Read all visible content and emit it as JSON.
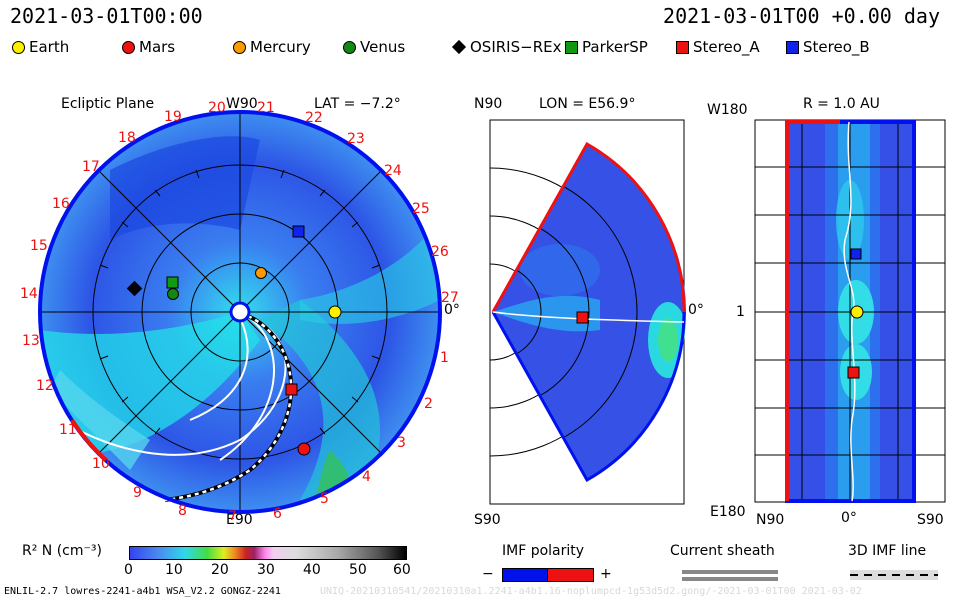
{
  "header": {
    "left_time": "2021-03-01T00:00",
    "right_time": "2021-03-01T00 +0.00 day"
  },
  "legend": [
    {
      "label": "Earth",
      "shape": "circle",
      "color": "#ffee00"
    },
    {
      "label": "Mars",
      "shape": "circle",
      "color": "#ee1111"
    },
    {
      "label": "Mercury",
      "shape": "circle",
      "color": "#ff9900"
    },
    {
      "label": "Venus",
      "shape": "circle",
      "color": "#118811"
    },
    {
      "label": "OSIRIS−REx",
      "shape": "diamond",
      "color": "#000000"
    },
    {
      "label": "ParkerSP",
      "shape": "square",
      "color": "#119911"
    },
    {
      "label": "Stereo_A",
      "shape": "square",
      "color": "#ee1111"
    },
    {
      "label": "Stereo_B",
      "shape": "square",
      "color": "#1122ee"
    }
  ],
  "ecliptic": {
    "title": "Ecliptic Plane",
    "top_label": "W90",
    "lat_label": "LAT = −7.2°",
    "bottom_label": "E90",
    "right_label": "0°",
    "numbers": [
      "19",
      "20",
      "21",
      "22",
      "23",
      "24",
      "25",
      "26",
      "27",
      "1",
      "2",
      "3",
      "4",
      "5",
      "6",
      "7",
      "8",
      "9",
      "10",
      "11",
      "12",
      "13",
      "14",
      "15",
      "16",
      "17",
      "18"
    ]
  },
  "meridional": {
    "top_label": "N90",
    "lon_label": "LON = E56.9°",
    "bottom_label": "S90",
    "right_label": "0°"
  },
  "radial": {
    "title": "R = 1.0 AU",
    "top_left": "W180",
    "mid_left": "1",
    "bottom_left": "E180",
    "bottom_n": "N90",
    "bottom_zero": "0°",
    "bottom_s": "S90"
  },
  "colorbar": {
    "label": "R² N (cm⁻³)",
    "ticks": [
      "0",
      "10",
      "20",
      "30",
      "40",
      "50",
      "60"
    ]
  },
  "imf_polarity": {
    "title": "IMF polarity",
    "minus": "−",
    "plus": "+",
    "neg_color": "#0011ee",
    "pos_color": "#ee1111"
  },
  "current_sheath": {
    "title": "Current sheath"
  },
  "imf_line": {
    "title": "3D IMF line"
  },
  "footer": {
    "left": "ENLIL-2.7 lowres-2241-a4b1 WSA_V2.2 GONGZ-2241",
    "right": "UNIQ-20210310541/20210310a1.2241-a4b1.16-noplumpcd-1g53d5d2.gong/-2021-03-01T00    2021-03-02"
  }
}
